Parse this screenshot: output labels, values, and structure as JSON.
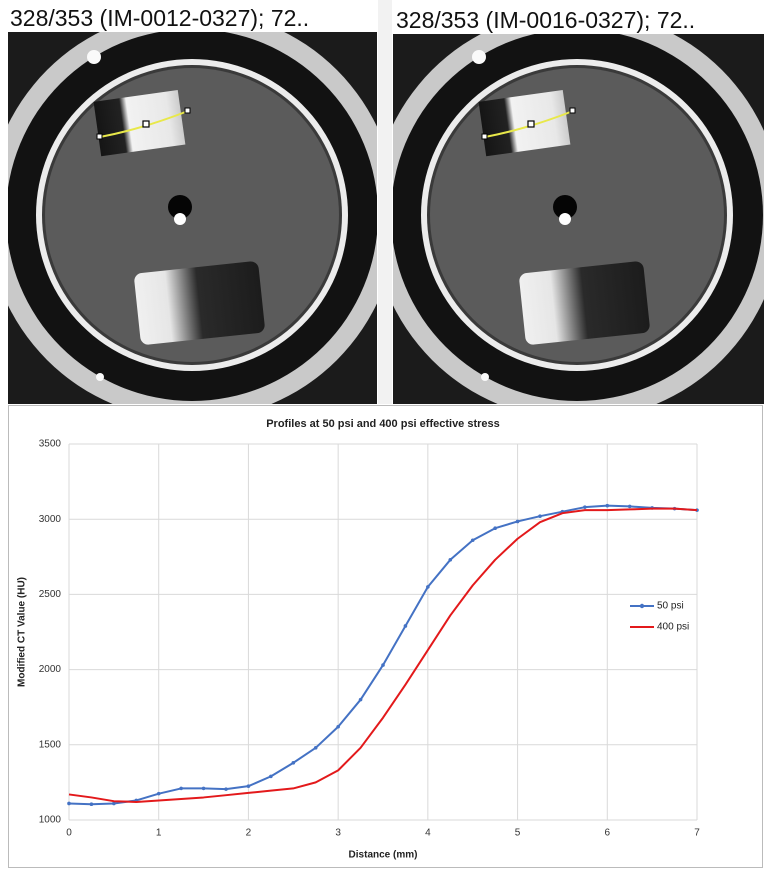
{
  "panels": [
    {
      "header": "328/353 (IM-0012-0327); 72.."
    },
    {
      "header": "328/353 (IM-0016-0327); 72.."
    }
  ],
  "chart_data": {
    "type": "line",
    "title": "Profiles at 50 psi and 400 psi effective stress",
    "x_label": "Distance (mm)",
    "y_label": "Modified CT Value (HU)",
    "x": [
      0,
      0.25,
      0.5,
      0.75,
      1,
      1.25,
      1.5,
      1.75,
      2,
      2.25,
      2.5,
      2.75,
      3,
      3.25,
      3.5,
      3.75,
      4,
      4.25,
      4.5,
      4.75,
      5,
      5.25,
      5.5,
      5.75,
      6,
      6.25,
      6.5,
      6.75,
      7
    ],
    "series": [
      {
        "name": "50 psi",
        "color": "#4472c4",
        "marker": true,
        "values": [
          1110,
          1105,
          1110,
          1130,
          1175,
          1210,
          1210,
          1205,
          1225,
          1290,
          1380,
          1480,
          1620,
          1800,
          2030,
          2290,
          2550,
          2730,
          2860,
          2940,
          2985,
          3020,
          3050,
          3080,
          3090,
          3085,
          3075,
          3070,
          3060
        ]
      },
      {
        "name": "400 psi",
        "color": "#e3191b",
        "marker": false,
        "values": [
          1170,
          1150,
          1125,
          1120,
          1130,
          1140,
          1150,
          1165,
          1180,
          1195,
          1210,
          1250,
          1330,
          1480,
          1680,
          1900,
          2130,
          2360,
          2560,
          2730,
          2870,
          2980,
          3040,
          3060,
          3060,
          3065,
          3070,
          3070,
          3060
        ]
      }
    ],
    "xlim": [
      0,
      7
    ],
    "xticks": [
      0,
      1,
      2,
      3,
      4,
      5,
      6,
      7
    ],
    "ylim": [
      1000,
      3500
    ],
    "yticks": [
      1000,
      1500,
      2000,
      2500,
      3000,
      3500
    ],
    "grid": true,
    "legend": "right"
  }
}
